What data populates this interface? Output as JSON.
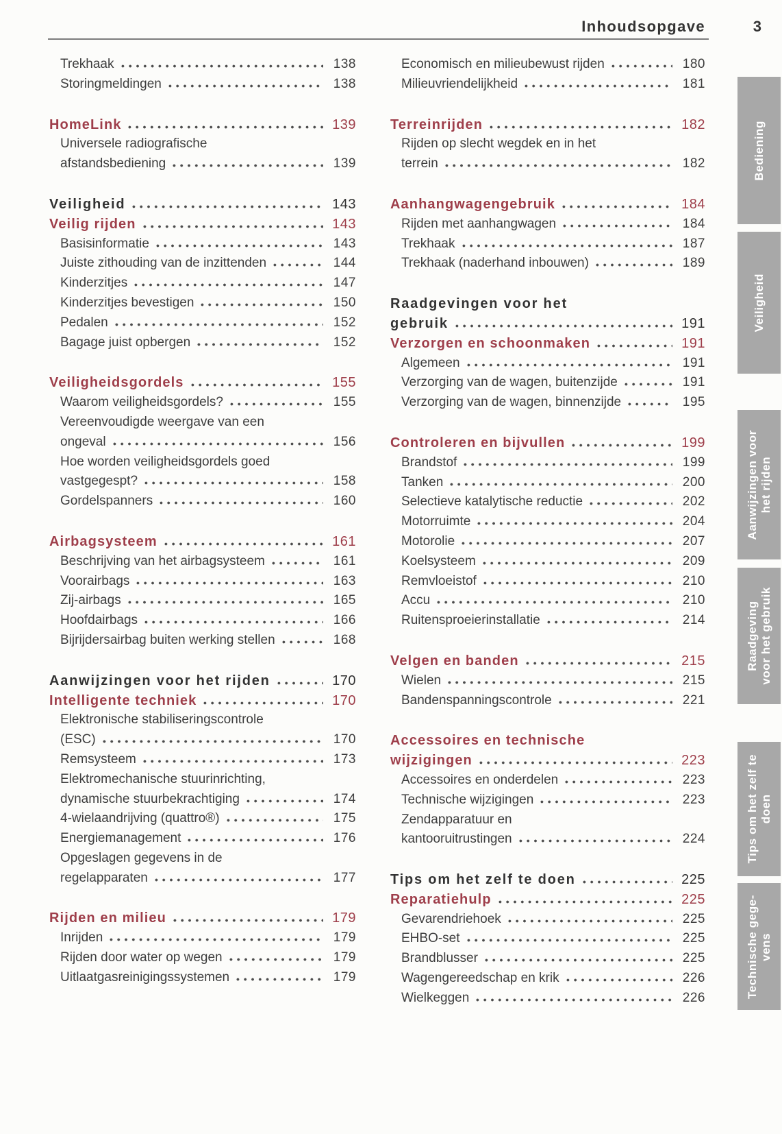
{
  "header": {
    "title": "Inhoudsopgave",
    "page_number": "3"
  },
  "colors": {
    "accent_red": "#9e3e4a",
    "chapter_black": "#323232",
    "text_dark": "#3d3d3d",
    "dot_leader": "#4c4c4c",
    "rule_gray": "#7c7c7c",
    "tab_gray": "#a8a8a8",
    "tab_text": "#ffffff"
  },
  "toc": {
    "columns": [
      {
        "groups": [
          {
            "entries": [
              {
                "style": "sub",
                "lines": [
                  "Trekhaak"
                ],
                "page": "138"
              },
              {
                "style": "sub",
                "lines": [
                  "Storingmeldingen"
                ],
                "page": "138"
              }
            ]
          },
          {
            "entries": [
              {
                "style": "section",
                "lines": [
                  "HomeLink"
                ],
                "page": "139"
              },
              {
                "style": "sub",
                "lines": [
                  "Universele radiografische",
                  "afstandsbediening"
                ],
                "page": "139"
              }
            ]
          },
          {
            "entries": [
              {
                "style": "chapter",
                "lines": [
                  "Veiligheid"
                ],
                "page": "143"
              },
              {
                "style": "section",
                "lines": [
                  "Veilig rijden"
                ],
                "page": "143"
              },
              {
                "style": "sub",
                "lines": [
                  "Basisinformatie"
                ],
                "page": "143"
              },
              {
                "style": "sub",
                "lines": [
                  "Juiste zithouding van de inzittenden"
                ],
                "page": "144"
              },
              {
                "style": "sub",
                "lines": [
                  "Kinderzitjes"
                ],
                "page": "147"
              },
              {
                "style": "sub",
                "lines": [
                  "Kinderzitjes bevestigen"
                ],
                "page": "150"
              },
              {
                "style": "sub",
                "lines": [
                  "Pedalen"
                ],
                "page": "152"
              },
              {
                "style": "sub",
                "lines": [
                  "Bagage juist opbergen"
                ],
                "page": "152"
              }
            ]
          },
          {
            "entries": [
              {
                "style": "section",
                "lines": [
                  "Veiligheidsgordels"
                ],
                "page": "155"
              },
              {
                "style": "sub",
                "lines": [
                  "Waarom veiligheidsgordels?"
                ],
                "page": "155"
              },
              {
                "style": "sub",
                "lines": [
                  "Vereenvoudigde weergave van een",
                  "ongeval"
                ],
                "page": "156"
              },
              {
                "style": "sub",
                "lines": [
                  "Hoe worden veiligheidsgordels goed",
                  "vastgegespt?"
                ],
                "page": "158"
              },
              {
                "style": "sub",
                "lines": [
                  "Gordelspanners"
                ],
                "page": "160"
              }
            ]
          },
          {
            "entries": [
              {
                "style": "section",
                "lines": [
                  "Airbagsysteem"
                ],
                "page": "161"
              },
              {
                "style": "sub",
                "lines": [
                  "Beschrijving van het airbagsysteem"
                ],
                "page": "161"
              },
              {
                "style": "sub",
                "lines": [
                  "Voorairbags"
                ],
                "page": "163"
              },
              {
                "style": "sub",
                "lines": [
                  "Zij-airbags"
                ],
                "page": "165"
              },
              {
                "style": "sub",
                "lines": [
                  "Hoofdairbags"
                ],
                "page": "166"
              },
              {
                "style": "sub",
                "lines": [
                  "Bijrijdersairbag buiten werking stellen"
                ],
                "page": "168"
              }
            ]
          },
          {
            "entries": [
              {
                "style": "chapter",
                "lines": [
                  "Aanwijzingen voor het rijden"
                ],
                "page": "170"
              },
              {
                "style": "section",
                "lines": [
                  "Intelligente techniek"
                ],
                "page": "170"
              },
              {
                "style": "sub",
                "lines": [
                  "Elektronische stabiliseringscontrole",
                  "(ESC)"
                ],
                "page": "170"
              },
              {
                "style": "sub",
                "lines": [
                  "Remsysteem"
                ],
                "page": "173"
              },
              {
                "style": "sub",
                "lines": [
                  "Elektromechanische stuurinrichting,",
                  "dynamische stuurbekrachtiging"
                ],
                "page": "174"
              },
              {
                "style": "sub",
                "lines": [
                  "4-wielaandrijving (quattro®)"
                ],
                "page": "175"
              },
              {
                "style": "sub",
                "lines": [
                  "Energiemanagement"
                ],
                "page": "176"
              },
              {
                "style": "sub",
                "lines": [
                  "Opgeslagen gegevens in de",
                  "regelapparaten"
                ],
                "page": "177"
              }
            ]
          },
          {
            "entries": [
              {
                "style": "section",
                "lines": [
                  "Rijden en milieu"
                ],
                "page": "179"
              },
              {
                "style": "sub",
                "lines": [
                  "Inrijden"
                ],
                "page": "179"
              },
              {
                "style": "sub",
                "lines": [
                  "Rijden door water op wegen"
                ],
                "page": "179"
              },
              {
                "style": "sub",
                "lines": [
                  "Uitlaatgasreinigingssystemen"
                ],
                "page": "179"
              }
            ]
          }
        ]
      },
      {
        "groups": [
          {
            "entries": [
              {
                "style": "sub",
                "lines": [
                  "Economisch en milieubewust rijden"
                ],
                "page": "180"
              },
              {
                "style": "sub",
                "lines": [
                  "Milieuvriendelijkheid"
                ],
                "page": "181"
              }
            ]
          },
          {
            "entries": [
              {
                "style": "section",
                "lines": [
                  "Terreinrijden"
                ],
                "page": "182"
              },
              {
                "style": "sub",
                "lines": [
                  "Rijden op slecht wegdek en in het",
                  "terrein"
                ],
                "page": "182"
              }
            ]
          },
          {
            "entries": [
              {
                "style": "section",
                "lines": [
                  "Aanhangwagengebruik"
                ],
                "page": "184"
              },
              {
                "style": "sub",
                "lines": [
                  "Rijden met aanhangwagen"
                ],
                "page": "184"
              },
              {
                "style": "sub",
                "lines": [
                  "Trekhaak"
                ],
                "page": "187"
              },
              {
                "style": "sub",
                "lines": [
                  "Trekhaak (naderhand inbouwen)"
                ],
                "page": "189"
              }
            ]
          },
          {
            "entries": [
              {
                "style": "chapter",
                "lines": [
                  "Raadgevingen voor het",
                  "gebruik"
                ],
                "page": "191"
              },
              {
                "style": "section",
                "lines": [
                  "Verzorgen en schoonmaken"
                ],
                "page": "191"
              },
              {
                "style": "sub",
                "lines": [
                  "Algemeen"
                ],
                "page": "191"
              },
              {
                "style": "sub",
                "lines": [
                  "Verzorging van de wagen, buitenzijde"
                ],
                "page": "191"
              },
              {
                "style": "sub",
                "lines": [
                  "Verzorging van de wagen, binnenzijde"
                ],
                "page": "195"
              }
            ]
          },
          {
            "entries": [
              {
                "style": "section",
                "lines": [
                  "Controleren en bijvullen"
                ],
                "page": "199"
              },
              {
                "style": "sub",
                "lines": [
                  "Brandstof"
                ],
                "page": "199"
              },
              {
                "style": "sub",
                "lines": [
                  "Tanken"
                ],
                "page": "200"
              },
              {
                "style": "sub",
                "lines": [
                  "Selectieve katalytische reductie"
                ],
                "page": "202"
              },
              {
                "style": "sub",
                "lines": [
                  "Motorruimte"
                ],
                "page": "204"
              },
              {
                "style": "sub",
                "lines": [
                  "Motorolie"
                ],
                "page": "207"
              },
              {
                "style": "sub",
                "lines": [
                  "Koelsysteem"
                ],
                "page": "209"
              },
              {
                "style": "sub",
                "lines": [
                  "Remvloeistof"
                ],
                "page": "210"
              },
              {
                "style": "sub",
                "lines": [
                  "Accu"
                ],
                "page": "210"
              },
              {
                "style": "sub",
                "lines": [
                  "Ruitensproeierinstallatie"
                ],
                "page": "214"
              }
            ]
          },
          {
            "entries": [
              {
                "style": "section",
                "lines": [
                  "Velgen en banden"
                ],
                "page": "215"
              },
              {
                "style": "sub",
                "lines": [
                  "Wielen"
                ],
                "page": "215"
              },
              {
                "style": "sub",
                "lines": [
                  "Bandenspanningscontrole"
                ],
                "page": "221"
              }
            ]
          },
          {
            "entries": [
              {
                "style": "section",
                "lines": [
                  "Accessoires en technische",
                  "wijzigingen"
                ],
                "page": "223"
              },
              {
                "style": "sub",
                "lines": [
                  "Accessoires en onderdelen"
                ],
                "page": "223"
              },
              {
                "style": "sub",
                "lines": [
                  "Technische wijzigingen"
                ],
                "page": "223"
              },
              {
                "style": "sub",
                "lines": [
                  "Zendapparatuur en",
                  "kantooruitrustingen"
                ],
                "page": "224"
              }
            ]
          },
          {
            "entries": [
              {
                "style": "chapter",
                "lines": [
                  "Tips om het zelf te doen"
                ],
                "page": "225"
              },
              {
                "style": "section",
                "lines": [
                  "Reparatiehulp"
                ],
                "page": "225"
              },
              {
                "style": "sub",
                "lines": [
                  "Gevarendriehoek"
                ],
                "page": "225"
              },
              {
                "style": "sub",
                "lines": [
                  "EHBO-set"
                ],
                "page": "225"
              },
              {
                "style": "sub",
                "lines": [
                  "Brandblusser"
                ],
                "page": "225"
              },
              {
                "style": "sub",
                "lines": [
                  "Wagengereedschap en krik"
                ],
                "page": "226"
              },
              {
                "style": "sub",
                "lines": [
                  "Wielkeggen"
                ],
                "page": "226"
              }
            ]
          }
        ]
      }
    ]
  },
  "sidebar": {
    "tabs": [
      {
        "id": "bediening",
        "label": "Bediening"
      },
      {
        "id": "veiligheid",
        "label": "Veiligheid"
      },
      {
        "id": "aanwijzingen-voor-het-rijden",
        "label": "Aanwijzingen voor\nhet rijden"
      },
      {
        "id": "raadgeving-voor-het-gebruik",
        "label": "Raadgeving\nvoor het gebruik"
      },
      {
        "id": "tips-om-het-zelf-te-doen",
        "label": "Tips om het zelf te\ndoen"
      },
      {
        "id": "technische-gegevens",
        "label": "Technische gege-\nvens"
      }
    ]
  }
}
